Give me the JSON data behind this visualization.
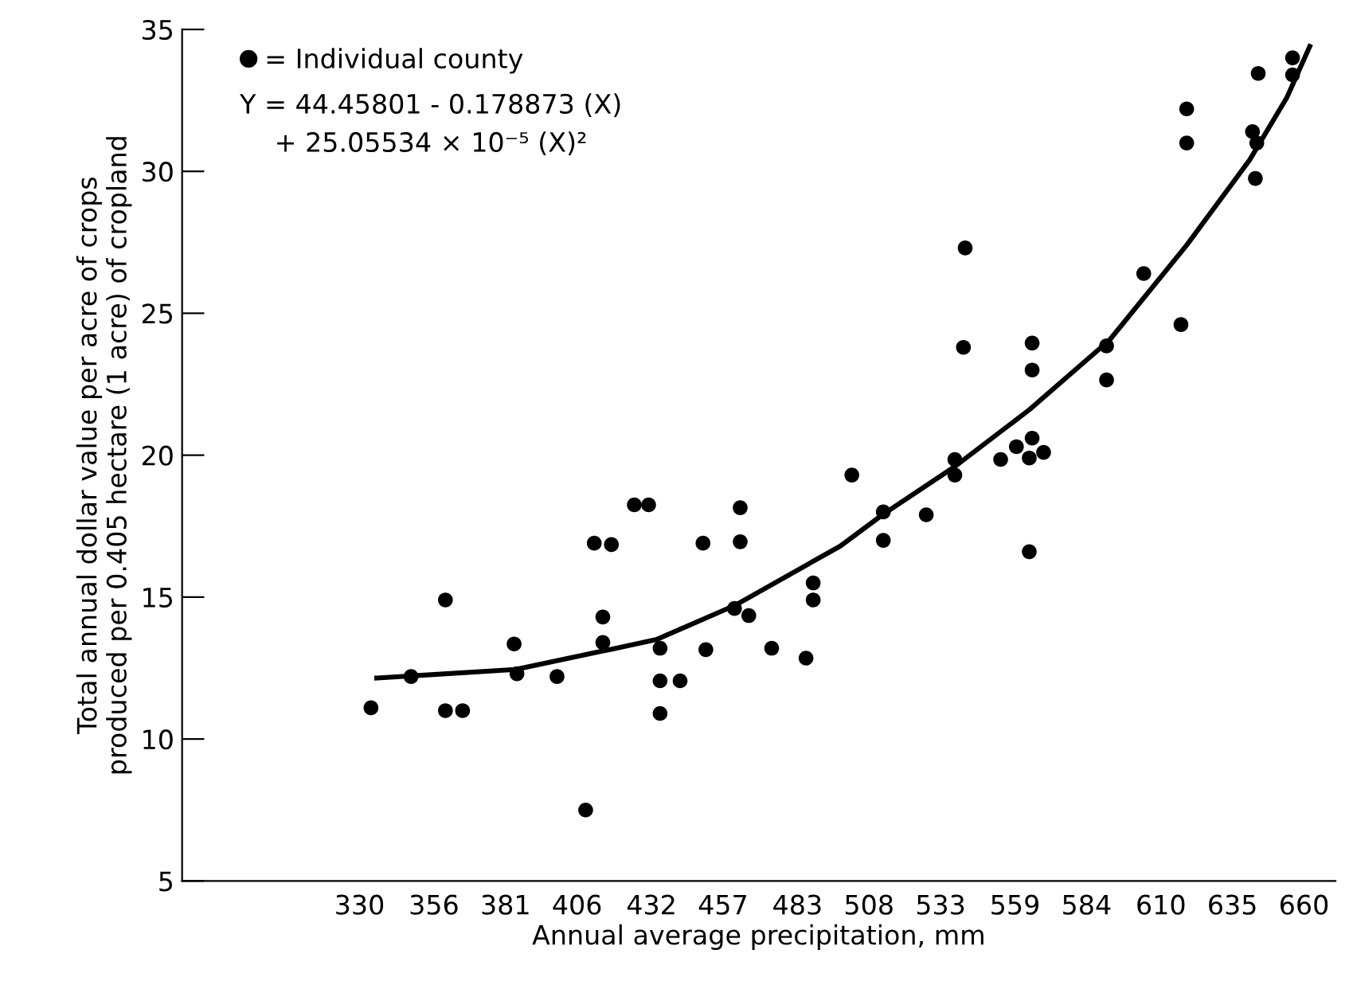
{
  "chart_data": {
    "type": "scatter",
    "xlabel": "Annual average precipitation, mm",
    "ylabel": "Total annual dollar value per acre of crops\nproduced per 0.405 hectare (1 acre) of cropland",
    "annotations": [
      "Y = 44.45801 - 0.178873 (X)",
      "+ 25.05534 × 10⁻⁵ (X)²"
    ],
    "xlim": [
      268,
      671
    ],
    "ylim": [
      5,
      35
    ],
    "xticks": [
      330,
      356,
      381,
      406,
      432,
      457,
      483,
      508,
      533,
      559,
      584,
      610,
      635,
      660
    ],
    "yticks": [
      5,
      10,
      15,
      20,
      25,
      30,
      35
    ],
    "grid": false,
    "legend": "top left",
    "marker": "circle",
    "series": [
      {
        "name": "= Individual county",
        "color": "#000000",
        "x": [
          334,
          348,
          360,
          360,
          366,
          384,
          385,
          399,
          409,
          412,
          418,
          415,
          415,
          426,
          431,
          435,
          435,
          442,
          435,
          450,
          451,
          463,
          463,
          461,
          466,
          474,
          486,
          488.5,
          488.5,
          502,
          513,
          513,
          528,
          538,
          538,
          554,
          564,
          559.5,
          565,
          564,
          569,
          541,
          541.6,
          565,
          565,
          591,
          591,
          604,
          617,
          619,
          619,
          643,
          642,
          643.5,
          644,
          656,
          656
        ],
        "values": [
          11.1,
          12.2,
          14.9,
          11.0,
          11.0,
          13.35,
          12.3,
          12.2,
          7.5,
          16.9,
          16.85,
          14.3,
          13.4,
          18.25,
          18.25,
          13.2,
          12.05,
          12.05,
          10.9,
          16.9,
          13.15,
          18.15,
          16.95,
          14.6,
          14.35,
          13.2,
          12.85,
          15.5,
          14.9,
          19.3,
          18.0,
          17.0,
          17.9,
          19.85,
          19.3,
          19.85,
          16.6,
          20.3,
          20.6,
          19.9,
          20.1,
          23.8,
          27.3,
          23.95,
          23.0,
          23.85,
          22.65,
          26.4,
          24.6,
          32.2,
          31.0,
          29.75,
          31.4,
          31.0,
          33.45,
          34.0,
          33.4
        ]
      },
      {
        "color": "#000000",
        "type": "line",
        "marker": "none",
        "line_style": "solid",
        "x": [
          336,
          384.5,
          415,
          433.6,
          461,
          498,
          512.7,
          538,
          564,
          592,
          619,
          641,
          654,
          662
        ],
        "values": [
          12.15,
          12.45,
          13.1,
          13.5,
          14.7,
          16.8,
          17.9,
          19.6,
          21.6,
          24.05,
          27.4,
          30.4,
          32.6,
          34.4
        ]
      }
    ]
  }
}
